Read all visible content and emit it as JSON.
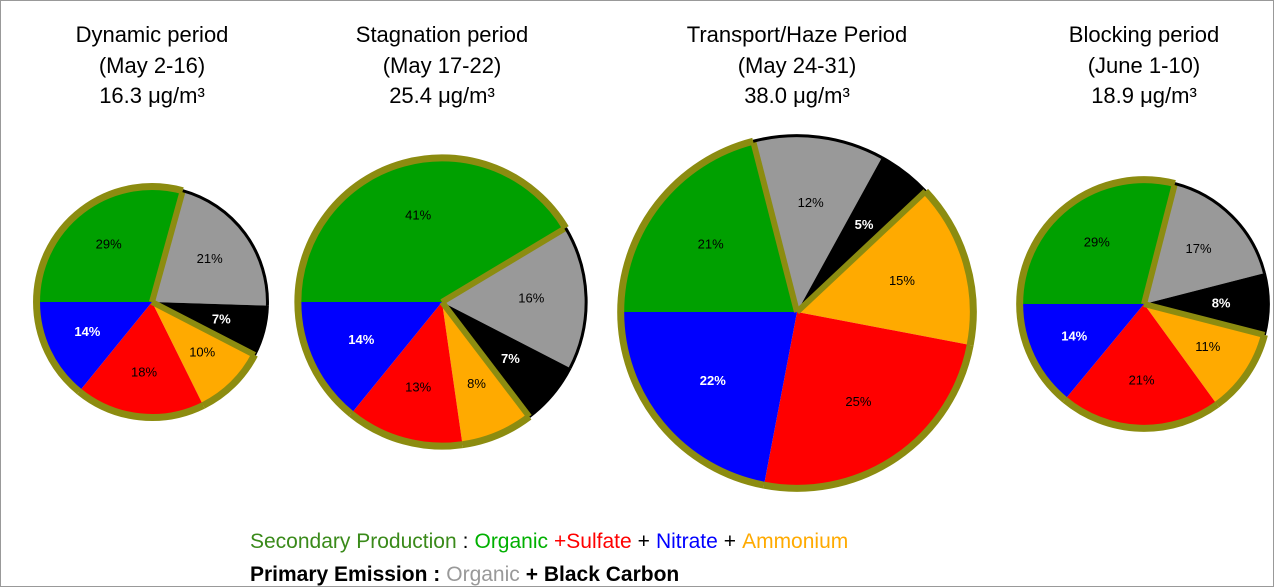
{
  "chart_data": [
    {
      "type": "pie",
      "title": "Dynamic period",
      "subtitle": "(May 2-16)",
      "total": {
        "value": 16.3,
        "label": "16.3 μg/m³"
      },
      "values": [
        29,
        21,
        7,
        10,
        18,
        14
      ],
      "value_labels": [
        "29%",
        "21%",
        "7%",
        "10%",
        "18%",
        "14%"
      ],
      "colors": [
        "#00a000",
        "#999999",
        "#000000",
        "#ffaa00",
        "#ff0000",
        "#0000ff"
      ],
      "outline_colors": [
        "#8c8c10",
        "#000000",
        "#000000",
        "#8c8c10",
        "#8c8c10",
        "#8c8c10"
      ],
      "label_colors": [
        "#000000",
        "#000000",
        "#ffffff",
        "#000000",
        "#000000",
        "#ffffff"
      ]
    },
    {
      "type": "pie",
      "title": "Stagnation period",
      "subtitle": "(May 17-22)",
      "total": {
        "value": 25.4,
        "label": "25.4 μg/m³"
      },
      "values": [
        41,
        16,
        7,
        8,
        13,
        14
      ],
      "value_labels": [
        "41%",
        "16%",
        "7%",
        "8%",
        "13%",
        "14%"
      ],
      "colors": [
        "#00a000",
        "#999999",
        "#000000",
        "#ffaa00",
        "#ff0000",
        "#0000ff"
      ],
      "outline_colors": [
        "#8c8c10",
        "#000000",
        "#000000",
        "#8c8c10",
        "#8c8c10",
        "#8c8c10"
      ],
      "label_colors": [
        "#000000",
        "#000000",
        "#ffffff",
        "#000000",
        "#000000",
        "#ffffff"
      ]
    },
    {
      "type": "pie",
      "title": "Transport/Haze Period",
      "subtitle": "(May 24-31)",
      "total": {
        "value": 38.0,
        "label": "38.0 μg/m³"
      },
      "values": [
        21,
        12,
        5,
        15,
        25,
        22
      ],
      "value_labels": [
        "21%",
        "12%",
        "5%",
        "15%",
        "25%",
        "22%"
      ],
      "colors": [
        "#00a000",
        "#999999",
        "#000000",
        "#ffaa00",
        "#ff0000",
        "#0000ff"
      ],
      "outline_colors": [
        "#8c8c10",
        "#000000",
        "#000000",
        "#8c8c10",
        "#8c8c10",
        "#8c8c10"
      ],
      "label_colors": [
        "#000000",
        "#000000",
        "#ffffff",
        "#000000",
        "#000000",
        "#ffffff"
      ]
    },
    {
      "type": "pie",
      "title": "Blocking period",
      "subtitle": "(June 1-10)",
      "total": {
        "value": 18.9,
        "label": "18.9 μg/m³"
      },
      "values": [
        29,
        17,
        8,
        11,
        21,
        14
      ],
      "value_labels": [
        "29%",
        "17%",
        "8%",
        "11%",
        "21%",
        "14%"
      ],
      "colors": [
        "#00a000",
        "#999999",
        "#000000",
        "#ffaa00",
        "#ff0000",
        "#0000ff"
      ],
      "outline_colors": [
        "#8c8c10",
        "#000000",
        "#000000",
        "#8c8c10",
        "#8c8c10",
        "#8c8c10"
      ],
      "label_colors": [
        "#000000",
        "#000000",
        "#ffffff",
        "#000000",
        "#000000",
        "#ffffff"
      ]
    }
  ],
  "legend": [
    [
      {
        "text": "Secondary Production",
        "color": "#3a8a1a"
      },
      {
        "text": ":",
        "color": "#000000"
      },
      {
        "text": "Organic",
        "color": "#00b000"
      },
      {
        "text": "+Sulfate",
        "color": "#ff0000"
      },
      {
        "text": "+",
        "color": "#000000"
      },
      {
        "text": "Nitrate",
        "color": "#0000ff"
      },
      {
        "text": "+",
        "color": "#000000"
      },
      {
        "text": "Ammonium",
        "color": "#ffaa00"
      }
    ],
    [
      {
        "text": "Primary Emission :",
        "color": "#000000"
      },
      {
        "text": "Organic",
        "color": "#999999"
      },
      {
        "text": "+ Black Carbon",
        "color": "#000000"
      }
    ]
  ]
}
